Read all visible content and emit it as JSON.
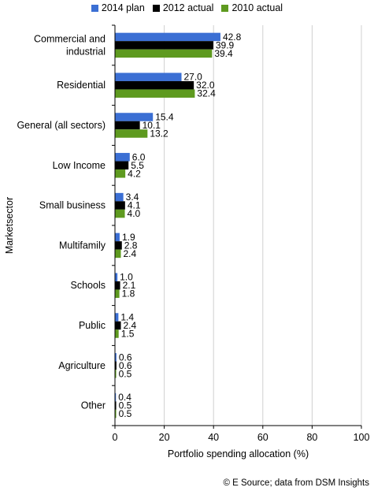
{
  "chart_data": {
    "type": "bar",
    "orientation": "horizontal",
    "categories": [
      "Commercial and industrial",
      "Residential",
      "General (all sectors)",
      "Low Income",
      "Small business",
      "Multifamily",
      "Schools",
      "Public",
      "Agriculture",
      "Other"
    ],
    "series": [
      {
        "name": "2014 plan",
        "color": "#3b6fd4",
        "values": [
          42.8,
          27.0,
          15.4,
          6.0,
          3.4,
          1.9,
          1.0,
          1.4,
          0.6,
          0.4
        ],
        "labels": [
          "42.8",
          "27.0",
          "15.4",
          "6.0",
          "3.4",
          "1.9",
          "1.0",
          "1.4",
          "0.6",
          "0.4"
        ]
      },
      {
        "name": "2012 actual",
        "color": "#000000",
        "values": [
          39.9,
          32.0,
          10.1,
          5.5,
          4.1,
          2.8,
          2.1,
          2.4,
          0.6,
          0.5
        ],
        "labels": [
          "39.9",
          "32.0",
          "10.1",
          "5.5",
          "4.1",
          "2.8",
          "2.1",
          "2.4",
          "0.6",
          "0.5"
        ]
      },
      {
        "name": "2010 actual",
        "color": "#5e9a1f",
        "values": [
          39.4,
          32.4,
          13.2,
          4.2,
          4.0,
          2.4,
          1.8,
          1.5,
          0.5,
          0.5
        ],
        "labels": [
          "39.4",
          "32.4",
          "13.2",
          "4.2",
          "4.0",
          "2.4",
          "1.8",
          "1.5",
          "0.5",
          "0.5"
        ]
      }
    ],
    "xlabel": "Portfolio spending allocation (%)",
    "ylabel": "Marketsector",
    "xlim": [
      0,
      100
    ],
    "xticks": [
      0,
      20,
      40,
      60,
      80,
      100
    ],
    "grid": "vertical",
    "legend_position": "top"
  },
  "category_lines": {
    "Commercial and industrial": [
      "Commercial and",
      "industrial"
    ]
  },
  "source": "© E Source; data from DSM Insights"
}
